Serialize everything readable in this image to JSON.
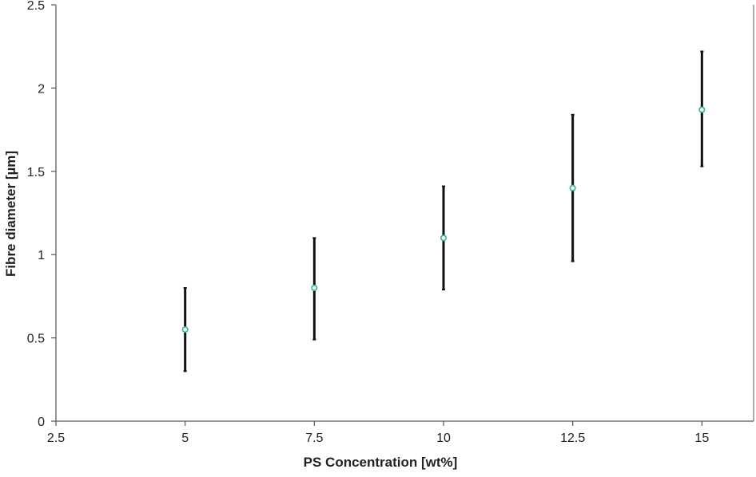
{
  "chart_data": {
    "type": "scatter",
    "title": "",
    "xlabel": "PS Concentration [wt%]",
    "ylabel": "Fibre diameter [µm]",
    "xlim": [
      2.5,
      16
    ],
    "ylim": [
      0,
      2.5
    ],
    "x_ticks": [
      2.5,
      5,
      7.5,
      10,
      12.5,
      15
    ],
    "x_tick_labels": [
      "2.5",
      "5",
      "7.5",
      "10",
      "12.5",
      "15"
    ],
    "y_ticks": [
      0,
      0.5,
      1,
      1.5,
      2,
      2.5
    ],
    "y_tick_labels": [
      "0",
      "0.5",
      "1",
      "1.5",
      "2",
      "2.5"
    ],
    "grid": false,
    "legend": false,
    "marker_color": "#3cb89a",
    "errorbar_color": "#111111",
    "axis_color": "#555555",
    "points": [
      {
        "x": 5,
        "y": 0.55,
        "lower": 0.3,
        "upper": 0.8
      },
      {
        "x": 7.5,
        "y": 0.8,
        "lower": 0.49,
        "upper": 1.1
      },
      {
        "x": 10,
        "y": 1.1,
        "lower": 0.79,
        "upper": 1.41
      },
      {
        "x": 12.5,
        "y": 1.4,
        "lower": 0.96,
        "upper": 1.84
      },
      {
        "x": 15,
        "y": 1.87,
        "lower": 1.53,
        "upper": 2.22
      }
    ]
  }
}
